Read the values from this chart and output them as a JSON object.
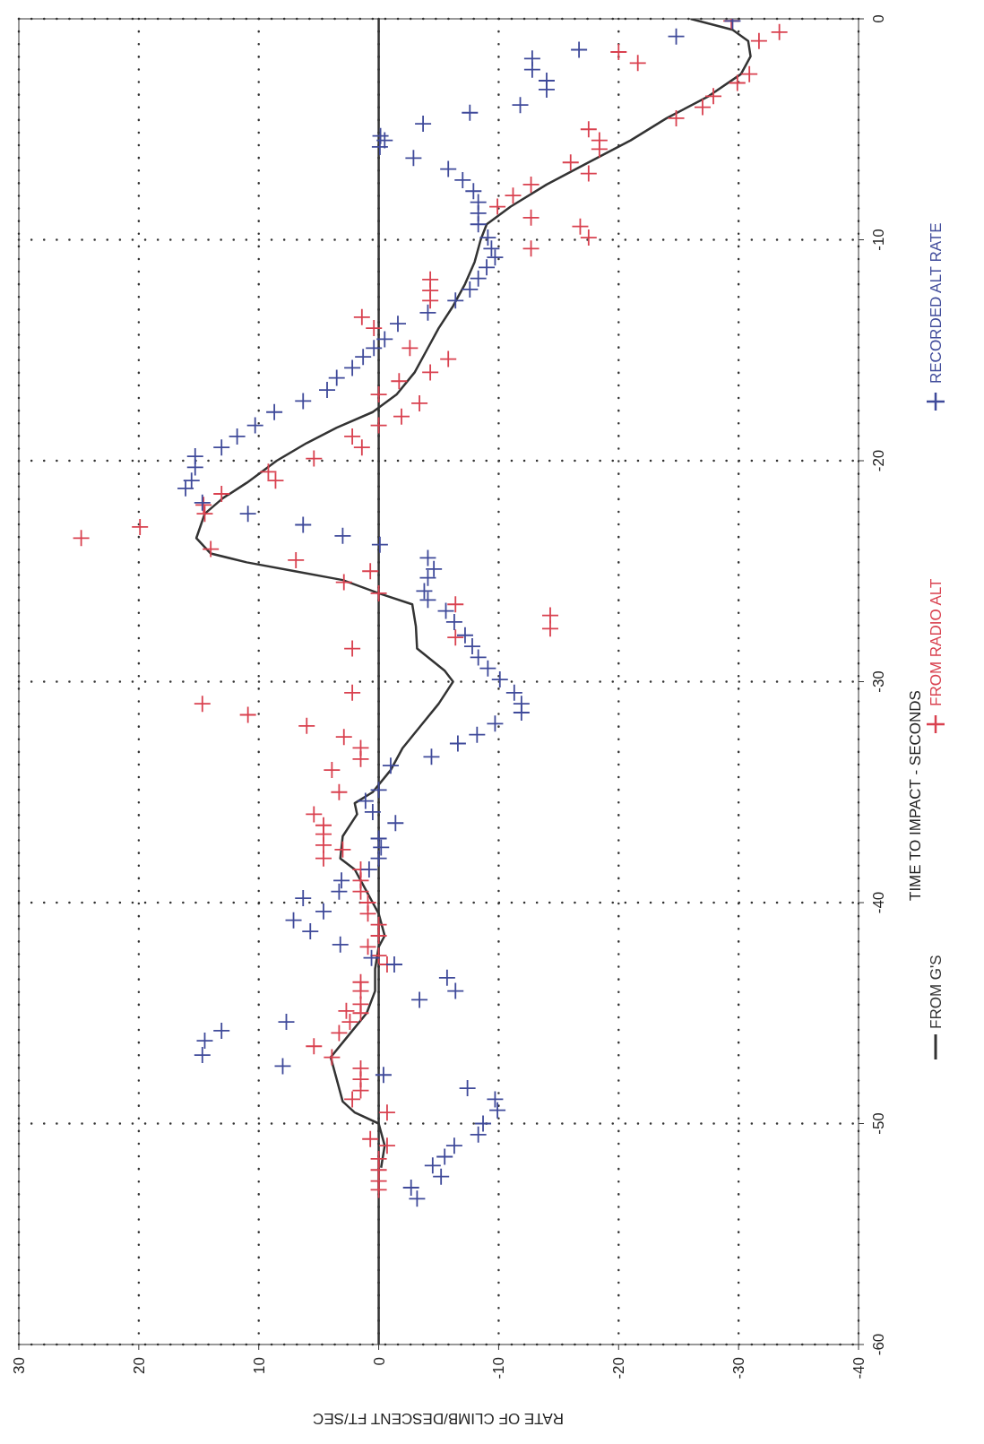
{
  "chart_data": {
    "type": "scatter",
    "xlabel": "RATE OF CLIMB/DESCENT  FT/SEC",
    "ylabel": "TIME TO IMPACT - SECONDS",
    "xlim": [
      30,
      -40
    ],
    "xticks": [
      30,
      20,
      10,
      0,
      -10,
      -20,
      -30,
      -40
    ],
    "ylim": [
      -60,
      0
    ],
    "yticks": [
      -60,
      -50,
      -40,
      -30,
      -20,
      -10,
      0
    ],
    "grid": true,
    "legend": "right",
    "ref_lines": [
      {
        "axis": "x",
        "value": 0,
        "color": "#333333",
        "line_style": "solid"
      }
    ],
    "series": [
      {
        "name": "FROM G'S",
        "type": "line",
        "color": "#333333",
        "marker": "none",
        "line_style": "solid",
        "values": [
          0,
          -0.5,
          -1,
          -1.7,
          -2.5,
          -3.5,
          -4.5,
          -5.5,
          -6.5,
          -7.5,
          -8.5,
          -9.3,
          -10,
          -11,
          -12,
          -13,
          -14,
          -15,
          -16,
          -17,
          -17.8,
          -18.5,
          -19.2,
          -20,
          -21,
          -21.7,
          -22.4,
          -23.5,
          -24.2,
          -24.6,
          -25,
          -25.4,
          -26,
          -26.5,
          -27.5,
          -28.5,
          -29.5,
          -30,
          -31,
          -32,
          -33,
          -34,
          -35,
          -35.5,
          -36,
          -37,
          -38,
          -38.5,
          -39.5,
          -40,
          -40.5,
          -41.5,
          -42,
          -43,
          -44,
          -45,
          -46,
          -47,
          -48,
          -49,
          -49.5,
          -50,
          -51,
          -52
        ],
        "x": [
          -26,
          -29.5,
          -30.8,
          -31,
          -30.2,
          -27.5,
          -24,
          -21,
          -17.5,
          -14,
          -11,
          -9,
          -8.5,
          -8,
          -7.2,
          -6.2,
          -5,
          -4,
          -3,
          -1.5,
          0.5,
          3.5,
          6,
          8.5,
          11,
          13,
          14.5,
          15.2,
          14,
          11,
          7,
          3,
          0,
          -2.8,
          -3.1,
          -3.2,
          -5.5,
          -6.2,
          -5,
          -3.5,
          -2,
          -1,
          0.5,
          2,
          1.8,
          3,
          3.2,
          2,
          1,
          0.5,
          0,
          -0.5,
          0,
          0.3,
          0.3,
          1,
          2.5,
          4,
          3.5,
          3,
          2,
          0,
          -0.5,
          -0.2
        ]
      },
      {
        "name": "FROM RADIO ALT",
        "color": "#d9414f",
        "marker": "cross",
        "values": [
          -0.1,
          -0.6,
          -1,
          -2.5,
          -2.9,
          -3.5,
          -4,
          -4.5,
          -1.5,
          -2,
          -5,
          -5.5,
          -5.9,
          -6.5,
          -7,
          -7.5,
          -8,
          -8.5,
          -9,
          -9.4,
          -9.9,
          -10.4,
          -11.8,
          -12.3,
          -12.75,
          -13.5,
          -14,
          -14.9,
          -16,
          -15.4,
          -16.4,
          -17,
          -17.4,
          -18,
          -18.4,
          -18.9,
          -19.4,
          -19.9,
          -20.5,
          -20.9,
          -21.5,
          -22,
          -22.4,
          -23,
          -23.5,
          -24,
          -24.5,
          -25.5,
          -25,
          -26,
          -26.5,
          -27,
          -27.6,
          -28,
          -28.5,
          -30.5,
          -31,
          -31.5,
          -32,
          -32.5,
          -33,
          -33.5,
          -34,
          -35,
          -36,
          -36.5,
          -36.9,
          -37.4,
          -37.6,
          -38,
          -38.5,
          -39,
          -39.5,
          -40,
          -40.5,
          -41,
          -41.5,
          -42,
          -42.4,
          -42.8,
          -43.6,
          -44,
          -44.6,
          -45,
          -44.9,
          -45.4,
          -45.9,
          -46.5,
          -47,
          -47.5,
          -48,
          -48.5,
          -48.9,
          -49.5,
          -50.7,
          -51,
          -51.6,
          -52.1,
          -52.6,
          -53
        ],
        "x": [
          -29.4,
          -33.4,
          -31.7,
          -30.9,
          -29.9,
          -27.9,
          -27,
          -24.8,
          -20,
          -21.6,
          -17.5,
          -18.4,
          -18.4,
          -16,
          -17.5,
          -12.7,
          -11.2,
          -9.9,
          -12.7,
          -16.8,
          -17.5,
          -12.7,
          -4.3,
          -4.3,
          -4.3,
          1.4,
          0.4,
          -2.6,
          -4.3,
          -5.8,
          -1.7,
          0,
          -3.4,
          -1.9,
          0,
          2.2,
          1.4,
          5.4,
          9.2,
          8.6,
          13.1,
          14.6,
          14.5,
          19.9,
          24.8,
          14,
          6.9,
          2.9,
          0.7,
          0,
          -6.4,
          -14.3,
          -14.3,
          -6.4,
          2.2,
          2.2,
          14.7,
          10.9,
          6,
          2.9,
          1.5,
          1.5,
          3.9,
          3.3,
          5.4,
          4.6,
          4.6,
          4.6,
          3,
          4.6,
          1.5,
          1.5,
          1.5,
          0.9,
          0.9,
          0,
          0,
          0.9,
          0,
          -0.7,
          1.5,
          1.5,
          1.5,
          1.5,
          2.7,
          2.4,
          3.3,
          5.4,
          3.9,
          1.5,
          1.5,
          1.5,
          2.2,
          -0.7,
          0.7,
          -0.7,
          0,
          0,
          0,
          0
        ]
      },
      {
        "name": "RECORDED ALT RATE",
        "color": "#3f4a9a",
        "marker": "cross",
        "values": [
          -0.1,
          -0.8,
          -1.4,
          -1.8,
          -2.3,
          -2.8,
          -3.2,
          -3.9,
          -4.25,
          -4.75,
          -5.3,
          -5.5,
          -5.8,
          -6.3,
          -6.8,
          -7.3,
          -7.8,
          -8.3,
          -8.8,
          -9.3,
          -9.9,
          -10.4,
          -10.8,
          -11.25,
          -11.75,
          -12.25,
          -12.75,
          -13.3,
          -13.8,
          -14.5,
          -14.9,
          -15.3,
          -15.8,
          -16.25,
          -16.8,
          -17.3,
          -17.8,
          -18.4,
          -18.9,
          -19.4,
          -19.8,
          -20.3,
          -20.9,
          -21.25,
          -21.9,
          -22.4,
          -22.9,
          -23.4,
          -23.8,
          -24.4,
          -24.9,
          -25.3,
          -25.9,
          -26.3,
          -26.8,
          -27.3,
          -27.9,
          -28.4,
          -28.9,
          -29.4,
          -29.9,
          -30.5,
          -31,
          -31.4,
          -31.9,
          -32.4,
          -32.8,
          -33.4,
          -33.8,
          -34.9,
          -35.4,
          -35.9,
          -36.4,
          -37.1,
          -37.5,
          -38,
          -38.5,
          -39,
          -39.5,
          -39.8,
          -40.4,
          -40.8,
          -41.3,
          -41.9,
          -42.5,
          -42.8,
          -43.4,
          -44,
          -44.4,
          -45.4,
          -45.8,
          -46.25,
          -46.9,
          -47.4,
          -47.8,
          -48.4,
          -48.9,
          -49.4,
          -50,
          -50.5,
          -51,
          -51.5,
          -51.9,
          -52.4,
          -52.9,
          -53.4
        ],
        "x": [
          -29.5,
          -24.8,
          -16.7,
          -12.8,
          -12.8,
          -14,
          -14,
          -11.8,
          -7.6,
          -3.7,
          -0.15,
          -0.5,
          -0.1,
          -2.9,
          -5.8,
          -7,
          -7.9,
          -8.3,
          -8.3,
          -8.3,
          -9.1,
          -9.4,
          -9.7,
          -9,
          -8.3,
          -7.6,
          -6.4,
          -4.1,
          -1.6,
          -0.5,
          0.4,
          1.3,
          2.2,
          3.5,
          4.3,
          6.3,
          8.7,
          10.3,
          11.8,
          13.1,
          15.3,
          15.3,
          15.6,
          16.1,
          14.7,
          10.9,
          6.3,
          3,
          -0.1,
          -4.1,
          -4.6,
          -4.1,
          -3.8,
          -4.1,
          -5.6,
          -6.3,
          -7.2,
          -7.8,
          -8.3,
          -9.1,
          -10.1,
          -11.3,
          -11.9,
          -11.9,
          -9.7,
          -8.2,
          -6.6,
          -4.4,
          -1,
          0,
          1.1,
          0.5,
          -1.4,
          0,
          -0.2,
          0,
          0.8,
          3.1,
          3.3,
          6.3,
          4.6,
          7.1,
          5.7,
          3.2,
          0.6,
          -1.3,
          -5.7,
          -6.4,
          -3.4,
          7.7,
          13.1,
          14.5,
          14.7,
          8,
          -0.4,
          -7.4,
          -9.7,
          -9.9,
          -8.7,
          -8.3,
          -6.3,
          -5.5,
          -4.5,
          -5.2,
          -2.7,
          -3.2
        ]
      }
    ]
  }
}
